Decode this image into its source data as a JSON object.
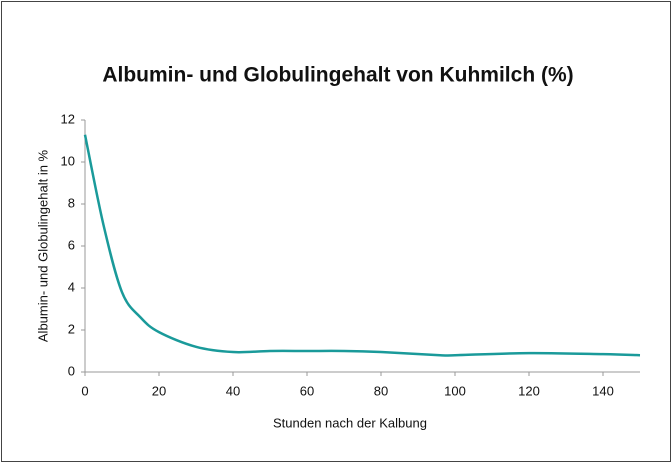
{
  "chart_data": {
    "type": "line",
    "title": "Albumin- und Globulingehalt von Kuhmilch (%)",
    "x_label": "Stunden nach der Kalbung",
    "y_label": "Albumin- und Globulingehalt in %",
    "x": [
      0,
      5,
      10,
      15,
      20,
      30,
      40,
      50,
      60,
      70,
      80,
      96,
      100,
      120,
      140,
      150
    ],
    "series": [
      {
        "name": "Albumin- und Globulingehalt",
        "color": "#1a9a9a",
        "values": [
          11.3,
          7.0,
          3.8,
          2.6,
          1.9,
          1.2,
          0.95,
          1.0,
          1.0,
          1.0,
          0.95,
          0.8,
          0.8,
          0.9,
          0.85,
          0.8
        ]
      }
    ],
    "xlim": [
      0,
      150
    ],
    "xticks": [
      0,
      20,
      40,
      60,
      80,
      100,
      120,
      140
    ],
    "ylim": [
      0,
      12
    ],
    "yticks": [
      0,
      2,
      4,
      6,
      8,
      10,
      12
    ],
    "grid": false
  }
}
